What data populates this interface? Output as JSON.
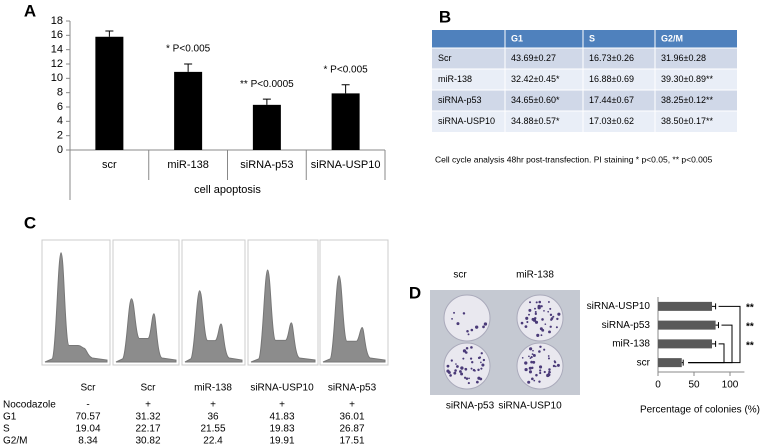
{
  "panel_labels": [
    "A",
    "B",
    "C",
    "D"
  ],
  "chart_data": [
    {
      "type": "bar",
      "categories": [
        "scr",
        "miR-138",
        "siRNA-p53",
        "siRNA-USP10"
      ],
      "values": [
        15.8,
        10.9,
        6.3,
        7.9
      ],
      "errors": [
        0.8,
        1.1,
        0.8,
        1.2
      ],
      "color": "#000000",
      "ylim": [
        0,
        18
      ],
      "yticks": [
        0,
        2,
        4,
        6,
        8,
        10,
        12,
        14,
        16,
        18
      ],
      "xlabel": "cell apoptosis",
      "annotations": [
        null,
        "* P<0.005",
        "** P<0.0005",
        "* P<0.005"
      ]
    },
    {
      "type": "hbar",
      "categories": [
        "siRNA-USP10",
        "siRNA-p53",
        "miR-138",
        "scr"
      ],
      "values": [
        75,
        80,
        75,
        33
      ],
      "errors": [
        5,
        4,
        5,
        2
      ],
      "color": "#595959",
      "xlim": [
        0,
        120
      ],
      "xticks": [
        0,
        50,
        100
      ],
      "xlabel": "Percentage of colonies (%)",
      "annotations": [
        "**",
        "**",
        "**"
      ]
    }
  ],
  "table_b": {
    "header": [
      "G1",
      "S",
      "G2/M"
    ],
    "rows": [
      [
        "Scr",
        "43.69±0.27",
        "16.73±0.26",
        "31.96±0.28"
      ],
      [
        "miR-138",
        "32.42±0.45*",
        "16.88±0.69",
        "39.30±0.89**"
      ],
      [
        "siRNA-p53",
        "34.65±0.60*",
        "17.44±0.67",
        "38.25±0.12**"
      ],
      [
        "siRNA-USP10",
        "34.88±0.57*",
        "17.03±0.62",
        "38.50±0.17**"
      ]
    ],
    "caption": "Cell cycle analysis 48hr post-transfection. PI staining  * p<0.05, ** p<0.005"
  },
  "panel_c": {
    "row_labels": [
      "Nocodazole",
      "G1",
      "S",
      "G2/M"
    ],
    "columns": [
      {
        "label": "Scr",
        "values": [
          "-",
          70.57,
          19.04,
          8.34
        ]
      },
      {
        "label": "Scr",
        "values": [
          "+",
          31.32,
          22.17,
          30.82
        ]
      },
      {
        "label": "miR-138",
        "values": [
          "+",
          36,
          21.55,
          22.4
        ]
      },
      {
        "label": "siRNA-USP10",
        "values": [
          "+",
          41.83,
          19.83,
          19.91
        ]
      },
      {
        "label": "siRNA-p53",
        "values": [
          "+",
          36.01,
          26.87,
          17.51
        ]
      }
    ]
  },
  "panel_d_images": [
    "scr",
    "miR-138",
    "siRNA-p53",
    "siRNA-USP10"
  ]
}
